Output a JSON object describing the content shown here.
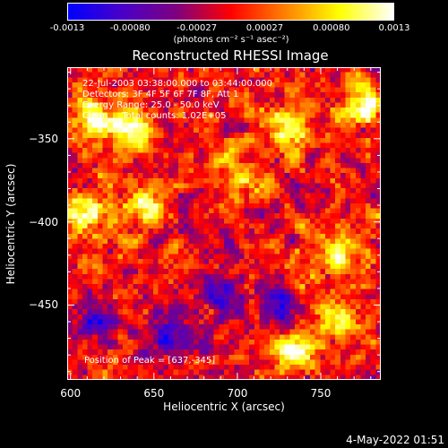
{
  "colorbar": {
    "tick_labels": [
      "-0.0013",
      "-0.00080",
      "-0.00027",
      "0.00027",
      "0.00080",
      "0.0013"
    ],
    "tick_values": [
      -0.0013,
      -0.0008,
      -0.00027,
      0.00027,
      0.0008,
      0.0013
    ],
    "range": [
      -0.0013,
      0.0013
    ],
    "units": "(photons cm⁻² s⁻¹ asec⁻²)",
    "colors": [
      "#0000ff",
      "#4a00c8",
      "#7f007f",
      "#ff0000",
      "#ff8000",
      "#ffff00",
      "#ffffff"
    ]
  },
  "chart_data": {
    "type": "heatmap",
    "title": "Reconstructed RHESSI Image",
    "xlabel": "Heliocentric X (arcsec)",
    "ylabel": "Heliocentric Y (arcsec)",
    "xlim": [
      598,
      786
    ],
    "ylim": [
      -495,
      -307
    ],
    "xticks": [
      600,
      650,
      700,
      750
    ],
    "yticks": [
      -350,
      -400,
      -450
    ],
    "annotations": [
      "22-Jul-2003 03:38:00.000 to 03:44:00.000",
      "Detectors: 3F 4F 5F 6F 7F 8F, Att 1",
      "Energy Range: 25.0 - 50.0 keV",
      "Clean     Total counts: 1.02E+05"
    ],
    "peak_label": "Position of Peak = [637,-345]",
    "peak": [
      637,
      -345
    ],
    "bright_regions": [
      {
        "x": 637,
        "y": -345,
        "value": 0.0013
      },
      {
        "x": 612,
        "y": -338,
        "value": 0.0012
      },
      {
        "x": 610,
        "y": -395,
        "value": 0.0011
      },
      {
        "x": 645,
        "y": -390,
        "value": 0.0009
      },
      {
        "x": 730,
        "y": -345,
        "value": 0.0011
      },
      {
        "x": 775,
        "y": -330,
        "value": 0.0012
      },
      {
        "x": 760,
        "y": -420,
        "value": 0.001
      },
      {
        "x": 735,
        "y": -480,
        "value": 0.0011
      },
      {
        "x": 760,
        "y": -460,
        "value": 0.0009
      },
      {
        "x": 700,
        "y": -370,
        "value": 0.0008
      }
    ],
    "dark_regions": [
      {
        "x": 690,
        "y": -440,
        "value": -0.0011
      },
      {
        "x": 660,
        "y": -470,
        "value": -0.001
      },
      {
        "x": 725,
        "y": -450,
        "value": -0.0009
      },
      {
        "x": 615,
        "y": -460,
        "value": -0.0008
      }
    ]
  },
  "timestamp": "4-May-2022 01:51"
}
